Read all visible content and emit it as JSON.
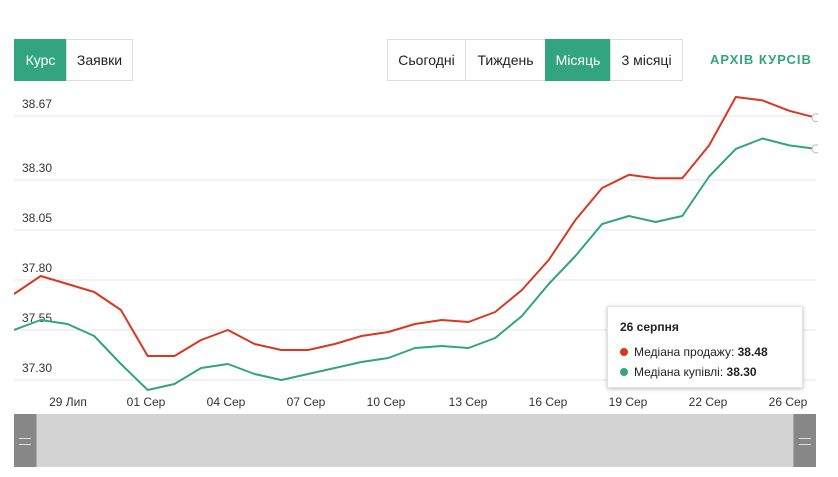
{
  "tabs": {
    "rate": "Курс",
    "orders": "Заявки"
  },
  "periods": {
    "today": "Сьогодні",
    "week": "Тиждень",
    "month": "Місяць",
    "three_months": "3 місяці"
  },
  "archive_link": "АРХІВ КУРСІВ",
  "colors": {
    "accent": "#32a47f",
    "sell": "#d7381f",
    "buy": "#32a47f"
  },
  "chart_data": {
    "type": "line",
    "y_ticks": [
      "38.67",
      "38.30",
      "38.05",
      "37.80",
      "37.55",
      "37.30"
    ],
    "x_ticks": [
      "29 Лип",
      "01 Сер",
      "04 Сер",
      "07 Сер",
      "10 Сер",
      "13 Сер",
      "16 Сер",
      "19 Сер",
      "22 Сер",
      "26 Сер"
    ],
    "grid": true,
    "series": [
      {
        "name": "Медіана продажу",
        "color": "#d7381f",
        "values": [
          37.73,
          37.82,
          37.78,
          37.74,
          37.65,
          37.42,
          37.42,
          37.5,
          37.55,
          37.48,
          37.45,
          37.45,
          37.48,
          37.52,
          37.54,
          37.58,
          37.6,
          37.59,
          37.64,
          37.75,
          37.9,
          38.1,
          38.26,
          38.33,
          38.31,
          38.31,
          38.5,
          38.78,
          38.76,
          38.7,
          38.66
        ]
      },
      {
        "name": "Медіана купівлі",
        "color": "#32a47f",
        "values": [
          37.55,
          37.6,
          37.58,
          37.52,
          37.38,
          37.25,
          37.28,
          37.36,
          37.38,
          37.33,
          37.3,
          37.33,
          37.36,
          37.39,
          37.41,
          37.46,
          37.47,
          37.46,
          37.51,
          37.62,
          37.78,
          37.92,
          38.08,
          38.12,
          38.09,
          38.12,
          38.32,
          38.48,
          38.54,
          38.5,
          38.48
        ]
      }
    ]
  },
  "tooltip": {
    "date": "26 серпня",
    "sell_label": "Медіана продажу:",
    "sell_value": "38.48",
    "buy_label": "Медіана купівлі:",
    "buy_value": "38.30"
  }
}
